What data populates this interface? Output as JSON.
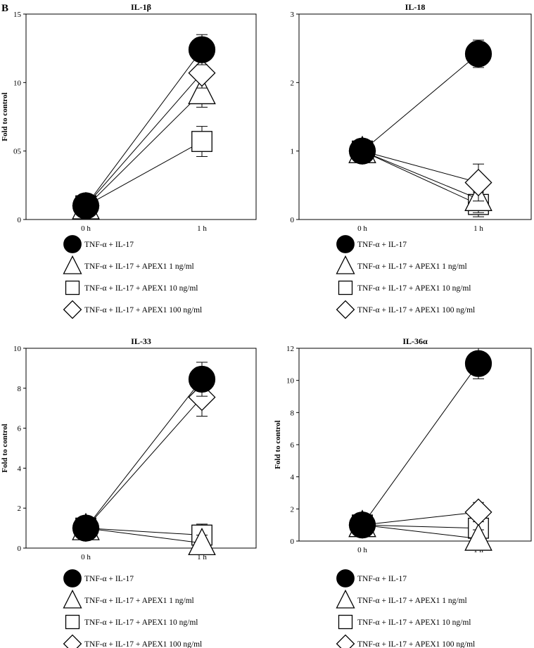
{
  "panel_letter": "B",
  "colors": {
    "ink": "#000000",
    "paper": "#ffffff"
  },
  "chart_data": [
    {
      "type": "line",
      "title": "IL-1β",
      "ylabel": "Fold to control",
      "categories": [
        "0 h",
        "1 h"
      ],
      "ylim": [
        0,
        15
      ],
      "yticks": [
        0,
        5,
        10,
        15
      ],
      "ytick_labels": [
        "0",
        "05",
        "10",
        "15"
      ],
      "series": [
        {
          "name": "TNF-α + IL-17",
          "marker": "circle",
          "values": [
            1.0,
            12.4
          ],
          "errors": [
            0.2,
            1.1
          ]
        },
        {
          "name": "TNF-α + IL-17 + APEX1 1 ng/ml",
          "marker": "triangle",
          "values": [
            0.9,
            9.3
          ],
          "errors": [
            0.2,
            1.1
          ]
        },
        {
          "name": "TNF-α + IL-17 + APEX1 10 ng/ml",
          "marker": "square",
          "values": [
            1.0,
            5.7
          ],
          "errors": [
            0.2,
            1.1
          ]
        },
        {
          "name": "TNF-α + IL-17 + APEX1 100 ng/ml",
          "marker": "diamond",
          "values": [
            1.0,
            10.7
          ],
          "errors": [
            0.2,
            1.1
          ]
        }
      ]
    },
    {
      "type": "line",
      "title": "IL-18",
      "ylabel": "",
      "categories": [
        "0 h",
        "1 h"
      ],
      "ylim": [
        0,
        3
      ],
      "yticks": [
        0,
        1,
        2,
        3
      ],
      "ytick_labels": [
        "0",
        "1",
        "2",
        "3"
      ],
      "series": [
        {
          "name": "TNF-α + IL-17",
          "marker": "circle",
          "values": [
            1.0,
            2.42
          ],
          "errors": [
            0.05,
            0.2
          ]
        },
        {
          "name": "TNF-α + IL-17 + APEX1 1 ng/ml",
          "marker": "triangle",
          "values": [
            1.0,
            0.3
          ],
          "errors": [
            0.05,
            0.2
          ]
        },
        {
          "name": "TNF-α + IL-17 + APEX1 10 ng/ml",
          "marker": "square",
          "values": [
            1.0,
            0.22
          ],
          "errors": [
            0.05,
            0.18
          ]
        },
        {
          "name": "TNF-α + IL-17 + APEX1 100 ng/ml",
          "marker": "diamond",
          "values": [
            1.0,
            0.54
          ],
          "errors": [
            0.05,
            0.27
          ]
        }
      ]
    },
    {
      "type": "line",
      "title": "IL-33",
      "ylabel": "Fold to control",
      "categories": [
        "0 h",
        "1 h"
      ],
      "ylim": [
        0,
        10
      ],
      "yticks": [
        0,
        2,
        4,
        6,
        8,
        10
      ],
      "ytick_labels": [
        "0",
        "2",
        "4",
        "6",
        "8",
        "10"
      ],
      "series": [
        {
          "name": "TNF-α + IL-17",
          "marker": "circle",
          "values": [
            1.0,
            8.45
          ],
          "errors": [
            0.2,
            0.85
          ]
        },
        {
          "name": "TNF-α + IL-17 + APEX1 1 ng/ml",
          "marker": "triangle",
          "values": [
            1.0,
            0.25
          ],
          "errors": [
            0.2,
            0.4
          ]
        },
        {
          "name": "TNF-α + IL-17 + APEX1 10 ng/ml",
          "marker": "square",
          "values": [
            1.0,
            0.65
          ],
          "errors": [
            0.2,
            0.55
          ]
        },
        {
          "name": "TNF-α + IL-17 + APEX1 100 ng/ml",
          "marker": "diamond",
          "values": [
            1.0,
            7.55
          ],
          "errors": [
            0.2,
            0.95
          ]
        }
      ]
    },
    {
      "type": "line",
      "title": "IL-36α",
      "ylabel": "Fold to control",
      "categories": [
        "0 h",
        "1 h"
      ],
      "ylim": [
        0,
        12
      ],
      "yticks": [
        0,
        2,
        4,
        6,
        8,
        10,
        12
      ],
      "ytick_labels": [
        "0",
        "2",
        "4",
        "6",
        "8",
        "10",
        "12"
      ],
      "series": [
        {
          "name": "TNF-α + IL-17",
          "marker": "circle",
          "values": [
            1.0,
            11.05
          ],
          "errors": [
            0.2,
            0.95
          ]
        },
        {
          "name": "TNF-α + IL-17 + APEX1 1 ng/ml",
          "marker": "triangle",
          "values": [
            1.0,
            0.15
          ],
          "errors": [
            0.2,
            0.55
          ]
        },
        {
          "name": "TNF-α + IL-17 + APEX1 10 ng/ml",
          "marker": "square",
          "values": [
            1.0,
            0.8
          ],
          "errors": [
            0.2,
            0.5
          ]
        },
        {
          "name": "TNF-α + IL-17 + APEX1 100 ng/ml",
          "marker": "diamond",
          "values": [
            1.0,
            1.8
          ],
          "errors": [
            0.2,
            0.6
          ]
        }
      ]
    }
  ]
}
